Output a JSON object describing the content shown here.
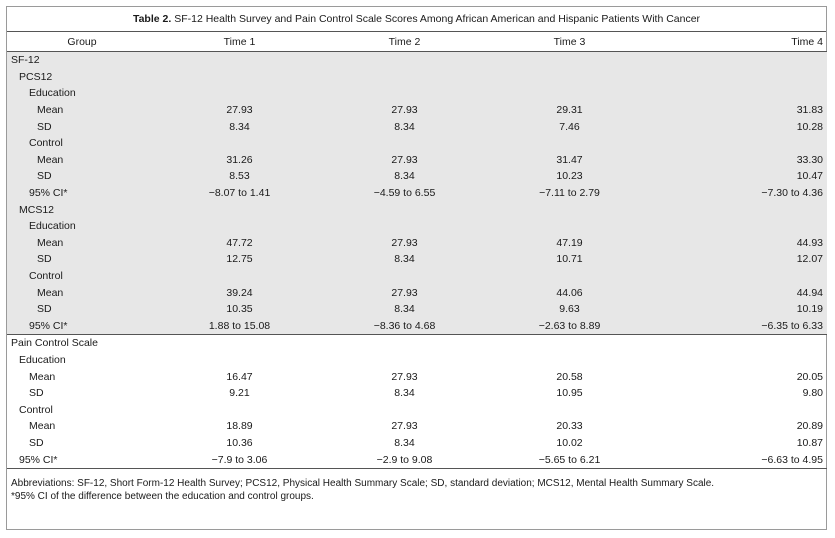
{
  "caption": {
    "label": "Table 2.",
    "text": "SF-12 Health Survey and Pain Control Scale Scores Among African American and Hispanic Patients With Cancer"
  },
  "columns": [
    "Group",
    "Time 1",
    "Time 2",
    "Time 3",
    "Time 4"
  ],
  "rows": [
    {
      "label": "SF-12",
      "indent": 0,
      "shaded": true,
      "values": []
    },
    {
      "label": "PCS12",
      "indent": 1,
      "shaded": true,
      "values": []
    },
    {
      "label": "Education",
      "indent": 2,
      "shaded": true,
      "values": []
    },
    {
      "label": "Mean",
      "indent": 3,
      "shaded": true,
      "values": [
        "27.93",
        "27.93",
        "29.31",
        "31.83"
      ]
    },
    {
      "label": "SD",
      "indent": 3,
      "shaded": true,
      "values": [
        "8.34",
        "8.34",
        "7.46",
        "10.28"
      ]
    },
    {
      "label": "Control",
      "indent": 2,
      "shaded": true,
      "values": []
    },
    {
      "label": "Mean",
      "indent": 3,
      "shaded": true,
      "values": [
        "31.26",
        "27.93",
        "31.47",
        "33.30"
      ]
    },
    {
      "label": "SD",
      "indent": 3,
      "shaded": true,
      "values": [
        "8.53",
        "8.34",
        "10.23",
        "10.47"
      ]
    },
    {
      "label": "95% CI*",
      "indent": 2,
      "shaded": true,
      "values": [
        "−8.07 to 1.41",
        "−4.59 to 6.55",
        "−7.11 to 2.79",
        "−7.30 to 4.36"
      ]
    },
    {
      "label": "MCS12",
      "indent": 1,
      "shaded": true,
      "values": []
    },
    {
      "label": "Education",
      "indent": 2,
      "shaded": true,
      "values": []
    },
    {
      "label": "Mean",
      "indent": 3,
      "shaded": true,
      "values": [
        "47.72",
        "27.93",
        "47.19",
        "44.93"
      ]
    },
    {
      "label": "SD",
      "indent": 3,
      "shaded": true,
      "values": [
        "12.75",
        "8.34",
        "10.71",
        "12.07"
      ]
    },
    {
      "label": "Control",
      "indent": 2,
      "shaded": true,
      "values": []
    },
    {
      "label": "Mean",
      "indent": 3,
      "shaded": true,
      "values": [
        "39.24",
        "27.93",
        "44.06",
        "44.94"
      ]
    },
    {
      "label": "SD",
      "indent": 3,
      "shaded": true,
      "values": [
        "10.35",
        "8.34",
        "9.63",
        "10.19"
      ]
    },
    {
      "label": "95% CI*",
      "indent": 2,
      "shaded": true,
      "values": [
        "1.88 to 15.08",
        "−8.36 to 4.68",
        "−2.63 to 8.89",
        "−6.35 to 6.33"
      ]
    },
    {
      "label": "Pain Control Scale",
      "indent": 0,
      "shaded": false,
      "sep": true,
      "values": []
    },
    {
      "label": "Education",
      "indent": 1,
      "shaded": false,
      "values": []
    },
    {
      "label": "Mean",
      "indent": 2,
      "shaded": false,
      "values": [
        "16.47",
        "27.93",
        "20.58",
        "20.05"
      ]
    },
    {
      "label": "SD",
      "indent": 2,
      "shaded": false,
      "values": [
        "9.21",
        "8.34",
        "10.95",
        "9.80"
      ]
    },
    {
      "label": "Control",
      "indent": 1,
      "shaded": false,
      "values": []
    },
    {
      "label": "Mean",
      "indent": 2,
      "shaded": false,
      "values": [
        "18.89",
        "27.93",
        "20.33",
        "20.89"
      ]
    },
    {
      "label": "SD",
      "indent": 2,
      "shaded": false,
      "values": [
        "10.36",
        "8.34",
        "10.02",
        "10.87"
      ]
    },
    {
      "label": "95% CI*",
      "indent": 1,
      "shaded": false,
      "last": true,
      "values": [
        "−7.9 to 3.06",
        "−2.9 to 9.08",
        "−5.65 to 6.21",
        "−6.63 to 4.95"
      ]
    }
  ],
  "footnotes": {
    "abbreviations": "Abbreviations: SF-12, Short Form-12 Health Survey; PCS12, Physical Health Summary Scale; SD, standard deviation; MCS12, Mental Health Summary Scale.",
    "ci_note": "*95% CI of the difference between the education and control groups."
  }
}
